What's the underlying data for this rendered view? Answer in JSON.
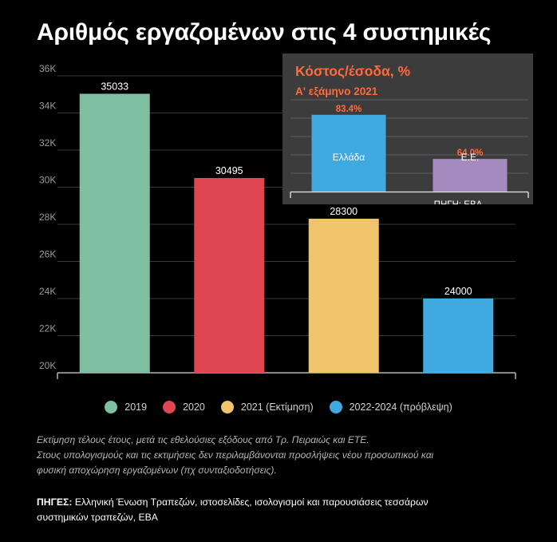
{
  "title": "Αριθμός εργαζομένων στις 4 συστημικές",
  "chart_data": [
    {
      "type": "bar",
      "title": "Αριθμός εργαζομένων στις 4 συστημικές",
      "categories": [
        "2019",
        "2020",
        "2021 (Εκτίμηση)",
        "2022-2024 (πρόβλεψη)"
      ],
      "values": [
        35033,
        30495,
        28300,
        24000
      ],
      "value_labels": [
        "35033",
        "30495",
        "28300",
        "24000"
      ],
      "colors": [
        "#7dbfa0",
        "#e04651",
        "#f0c46a",
        "#3fa9e0"
      ],
      "ylim": [
        20000,
        36000
      ],
      "yticks": [
        20000,
        22000,
        24000,
        26000,
        28000,
        30000,
        32000,
        34000,
        36000
      ],
      "ytick_labels": [
        "20K",
        "22K",
        "24K",
        "26K",
        "28K",
        "30K",
        "32K",
        "34K",
        "36K"
      ],
      "grid": true,
      "legend": "bottom",
      "xlabel": "",
      "ylabel": ""
    },
    {
      "type": "bar",
      "title": "Κόστος/έσοδα, %",
      "subtitle": "Α' εξάμηνο 2021",
      "categories": [
        "Ελλάδα",
        "Ε.Ε."
      ],
      "values": [
        83.4,
        64.0
      ],
      "value_labels": [
        "83.4%",
        "64.0%"
      ],
      "colors": [
        "#3fa9e0",
        "#a58bc0"
      ],
      "ylim": [
        50,
        90
      ],
      "grid": true,
      "source": "ΠΗΓΗ: EBA"
    }
  ],
  "legend": [
    {
      "label": "2019",
      "color": "#7dbfa0"
    },
    {
      "label": "2020",
      "color": "#e04651"
    },
    {
      "label": "2021 (Εκτίμηση)",
      "color": "#f0c46a"
    },
    {
      "label": "2022-2024 (πρόβλεψη)",
      "color": "#3fa9e0"
    }
  ],
  "note": [
    "Εκτίμηση τέλους έτους, μετά τις εθελούσιες εξόδους από Τρ. Πειραιώς και ΕΤΕ.",
    "Στους υπολογισμούς και τις εκτιμήσεις δεν περιλαμβάνονται προσλήψεις νέου προσωπικού και",
    "φυσική αποχώρηση εργαζομένων (πχ συνταξιοδοτήσεις)."
  ],
  "sources": {
    "label": "ΠΗΓΕΣ:",
    "line1": " Ελληνική Ένωση Τραπεζών, ιστοσελίδες, ισολογισμοί και παρουσιάσεις τεσσάρων",
    "line2": "συστημικών τραπεζών, EBA"
  },
  "colors": {
    "background": "#000000",
    "inset_background": "#3c3c3c",
    "inset_accent": "#ff6a3d",
    "gridline": "#3a3a3a",
    "axis_text": "#9a9a9a"
  }
}
